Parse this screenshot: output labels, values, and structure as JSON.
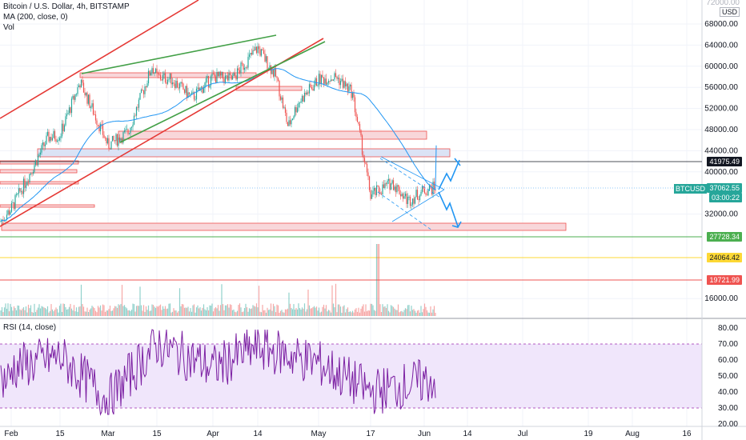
{
  "header": {
    "symbol_line": "Bitcoin / U.S. Dollar, 4h, BITSTAMP",
    "ma_line": "MA (200, close, 0)",
    "vol_line": "Vol",
    "rsi_line": "RSI (14, close)",
    "currency": "USD"
  },
  "price_tags": {
    "top_partial": "72000.00",
    "level_black": "41975.49",
    "btcusd_label": "BTCUSD",
    "current_price": "37062.55",
    "countdown": "03:00:22",
    "level_green": "27728.34",
    "level_yellow": "24064.42",
    "level_red": "19721.99"
  },
  "colors": {
    "rsi_band": "#f0e6fb",
    "rsi_line": "#7b1fa2",
    "ma_line": "#2196f3",
    "support_green": "#4caf50",
    "support_yellow": "#fdd835",
    "support_red": "#ef5350",
    "zone_red": "#f8d7da",
    "zone_blue": "#dbe3f5"
  },
  "chart_data": [
    {
      "type": "line",
      "pane": "price",
      "y_ticks": [
        "68000.00",
        "64000.00",
        "60000.00",
        "56000.00",
        "52000.00",
        "48000.00",
        "44000.00",
        "40000.00",
        "32000.00",
        "16000.00"
      ],
      "x_ticks": [
        "Feb",
        "15",
        "Mar",
        "15",
        "Apr",
        "14",
        "May",
        "17",
        "Jun",
        "14",
        "Jul",
        "19",
        "Aug",
        "16"
      ],
      "ylim": [
        12000,
        72000
      ],
      "series": [
        {
          "x": [
            "Feb",
            "15",
            "Mar",
            "15",
            "Apr",
            "14",
            "May",
            "17",
            "Jun"
          ],
          "values": [
            33000,
            47000,
            45000,
            58000,
            58000,
            63500,
            57500,
            35500,
            37062
          ]
        }
      ],
      "levels": [
        41975.49,
        27728.34,
        24064.42,
        19721.99
      ]
    },
    {
      "type": "line",
      "pane": "rsi",
      "y_ticks": [
        "80.00",
        "70.00",
        "60.00",
        "50.00",
        "40.00",
        "30.00",
        "20.00"
      ],
      "ylim": [
        18,
        82
      ],
      "band": [
        30,
        70
      ],
      "series": [
        {
          "x": [
            "Feb",
            "15",
            "Mar",
            "15",
            "Apr",
            "14",
            "May",
            "17",
            "Jun"
          ],
          "values": [
            55,
            62,
            35,
            70,
            55,
            68,
            58,
            40,
            48
          ]
        }
      ]
    }
  ]
}
